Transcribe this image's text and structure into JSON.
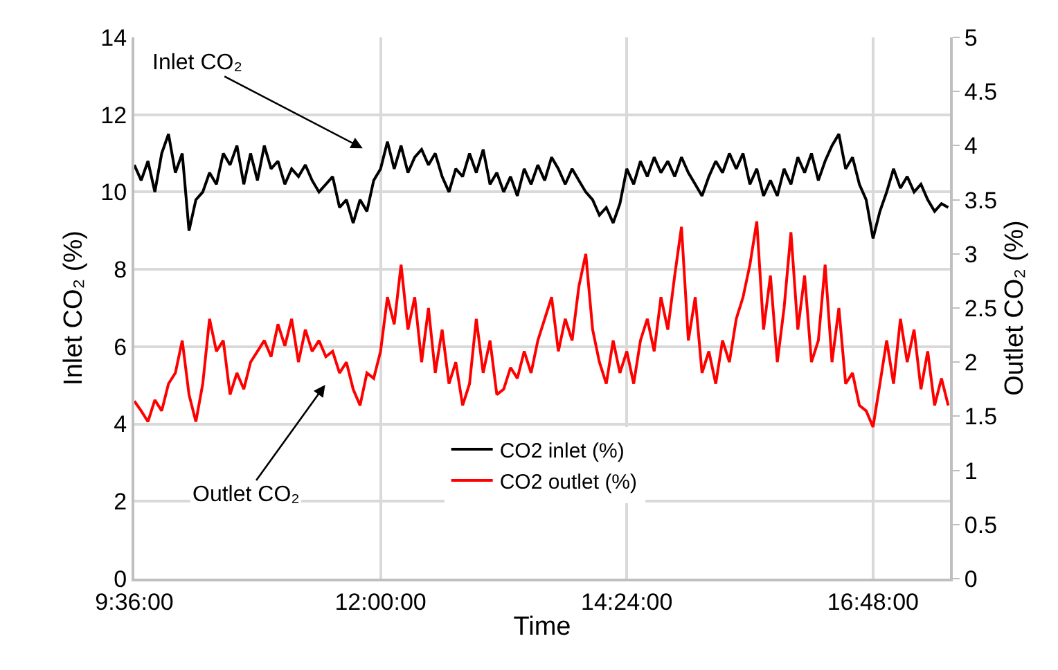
{
  "chart_data": {
    "type": "line",
    "xlabel": "Time",
    "ylabel": "Inlet CO₂ (%)",
    "y2label": "Outlet CO₂ (%)",
    "x": [
      9.6,
      9.667,
      9.733,
      9.8,
      9.867,
      9.933,
      10,
      10.067,
      10.133,
      10.2,
      10.267,
      10.333,
      10.4,
      10.467,
      10.533,
      10.6,
      10.667,
      10.733,
      10.8,
      10.867,
      10.933,
      11,
      11.067,
      11.133,
      11.2,
      11.267,
      11.333,
      11.4,
      11.467,
      11.533,
      11.6,
      11.667,
      11.733,
      11.8,
      11.867,
      11.933,
      12,
      12.067,
      12.133,
      12.2,
      12.267,
      12.333,
      12.4,
      12.467,
      12.533,
      12.6,
      12.667,
      12.733,
      12.8,
      12.867,
      12.933,
      13,
      13.067,
      13.133,
      13.2,
      13.267,
      13.333,
      13.4,
      13.467,
      13.533,
      13.6,
      13.667,
      13.733,
      13.8,
      13.867,
      13.933,
      14,
      14.067,
      14.133,
      14.2,
      14.267,
      14.333,
      14.4,
      14.467,
      14.533,
      14.6,
      14.667,
      14.733,
      14.8,
      14.867,
      14.933,
      15,
      15.067,
      15.133,
      15.2,
      15.267,
      15.333,
      15.4,
      15.467,
      15.533,
      15.6,
      15.667,
      15.733,
      15.8,
      15.867,
      15.933,
      16,
      16.067,
      16.133,
      16.2,
      16.267,
      16.333,
      16.4,
      16.467,
      16.533,
      16.6,
      16.667,
      16.733,
      16.8,
      16.867,
      16.933,
      17,
      17.067,
      17.133,
      17.2,
      17.267,
      17.333,
      17.4,
      17.467,
      17.533
    ],
    "series": [
      {
        "name": "CO2 inlet (%)",
        "color": "#000000",
        "values": [
          10.7,
          10.3,
          10.8,
          10.0,
          11.0,
          11.5,
          10.5,
          11.0,
          9.0,
          9.8,
          10.0,
          10.5,
          10.2,
          11.0,
          10.7,
          11.2,
          10.2,
          11.0,
          10.3,
          11.2,
          10.6,
          10.8,
          10.2,
          10.6,
          10.4,
          10.7,
          10.3,
          10.0,
          10.2,
          10.4,
          9.6,
          9.8,
          9.2,
          9.8,
          9.5,
          10.3,
          10.6,
          11.3,
          10.6,
          11.2,
          10.5,
          10.9,
          11.1,
          10.7,
          11.0,
          10.4,
          10.0,
          10.6,
          10.4,
          11.0,
          10.5,
          11.1,
          10.2,
          10.5,
          10.0,
          10.4,
          9.9,
          10.6,
          10.2,
          10.7,
          10.3,
          10.9,
          10.6,
          10.2,
          10.6,
          10.3,
          10.0,
          9.8,
          9.4,
          9.6,
          9.2,
          9.7,
          10.6,
          10.2,
          10.8,
          10.4,
          10.9,
          10.5,
          10.8,
          10.4,
          10.9,
          10.5,
          10.2,
          9.9,
          10.4,
          10.8,
          10.5,
          11.0,
          10.6,
          11.0,
          10.2,
          10.6,
          9.9,
          10.3,
          9.9,
          10.6,
          10.2,
          10.9,
          10.5,
          11.0,
          10.3,
          10.8,
          11.2,
          11.5,
          10.6,
          10.9,
          10.2,
          9.8,
          8.8,
          9.5,
          10.0,
          10.6,
          10.1,
          10.4,
          10.0,
          10.2,
          9.8,
          9.5,
          9.7,
          9.6
        ]
      },
      {
        "name": "CO2 outlet (%)",
        "color": "#ff0000",
        "axis": "y2",
        "values": [
          1.64,
          1.55,
          1.45,
          1.65,
          1.55,
          1.8,
          1.9,
          2.2,
          1.7,
          1.45,
          1.8,
          2.4,
          2.1,
          2.2,
          1.7,
          1.9,
          1.75,
          2.0,
          2.1,
          2.2,
          2.05,
          2.35,
          2.15,
          2.4,
          2.0,
          2.3,
          2.1,
          2.2,
          2.05,
          2.1,
          1.9,
          2.0,
          1.75,
          1.6,
          1.9,
          1.85,
          2.1,
          2.6,
          2.35,
          2.9,
          2.3,
          2.6,
          2.0,
          2.5,
          1.9,
          2.3,
          1.8,
          2.0,
          1.6,
          1.8,
          2.4,
          1.9,
          2.2,
          1.7,
          1.75,
          1.95,
          1.85,
          2.1,
          1.9,
          2.2,
          2.4,
          2.6,
          2.1,
          2.4,
          2.2,
          2.7,
          3.0,
          2.3,
          2.0,
          1.8,
          2.2,
          1.9,
          2.1,
          1.8,
          2.2,
          2.4,
          2.1,
          2.6,
          2.3,
          2.8,
          3.25,
          2.2,
          2.6,
          1.9,
          2.1,
          1.8,
          2.2,
          2.0,
          2.4,
          2.6,
          2.9,
          3.3,
          2.3,
          2.8,
          2.0,
          2.5,
          3.2,
          2.3,
          2.8,
          2.0,
          2.2,
          2.9,
          2.0,
          2.5,
          1.8,
          1.9,
          1.6,
          1.55,
          1.4,
          1.8,
          2.2,
          1.8,
          2.4,
          2.0,
          2.3,
          1.75,
          2.1,
          1.6,
          1.85,
          1.6
        ]
      }
    ],
    "xlim": [
      9.6,
      17.55
    ],
    "xticks": [
      {
        "value": 9.6,
        "label": "9:36:00"
      },
      {
        "value": 12,
        "label": "12:00:00"
      },
      {
        "value": 14.4,
        "label": "14:24:00"
      },
      {
        "value": 16.8,
        "label": "16:48:00"
      }
    ],
    "ylim": [
      0,
      14
    ],
    "yticks": [
      0,
      2,
      4,
      6,
      8,
      10,
      12,
      14
    ],
    "y2lim": [
      0,
      5
    ],
    "y2ticks": [
      0,
      0.5,
      1,
      1.5,
      2,
      2.5,
      3,
      3.5,
      4,
      4.5,
      5
    ],
    "annotations": [
      "Inlet CO₂",
      "Outlet CO₂"
    ],
    "grid": true,
    "legend": "bottom",
    "marker": "none",
    "line_style": "solid"
  }
}
